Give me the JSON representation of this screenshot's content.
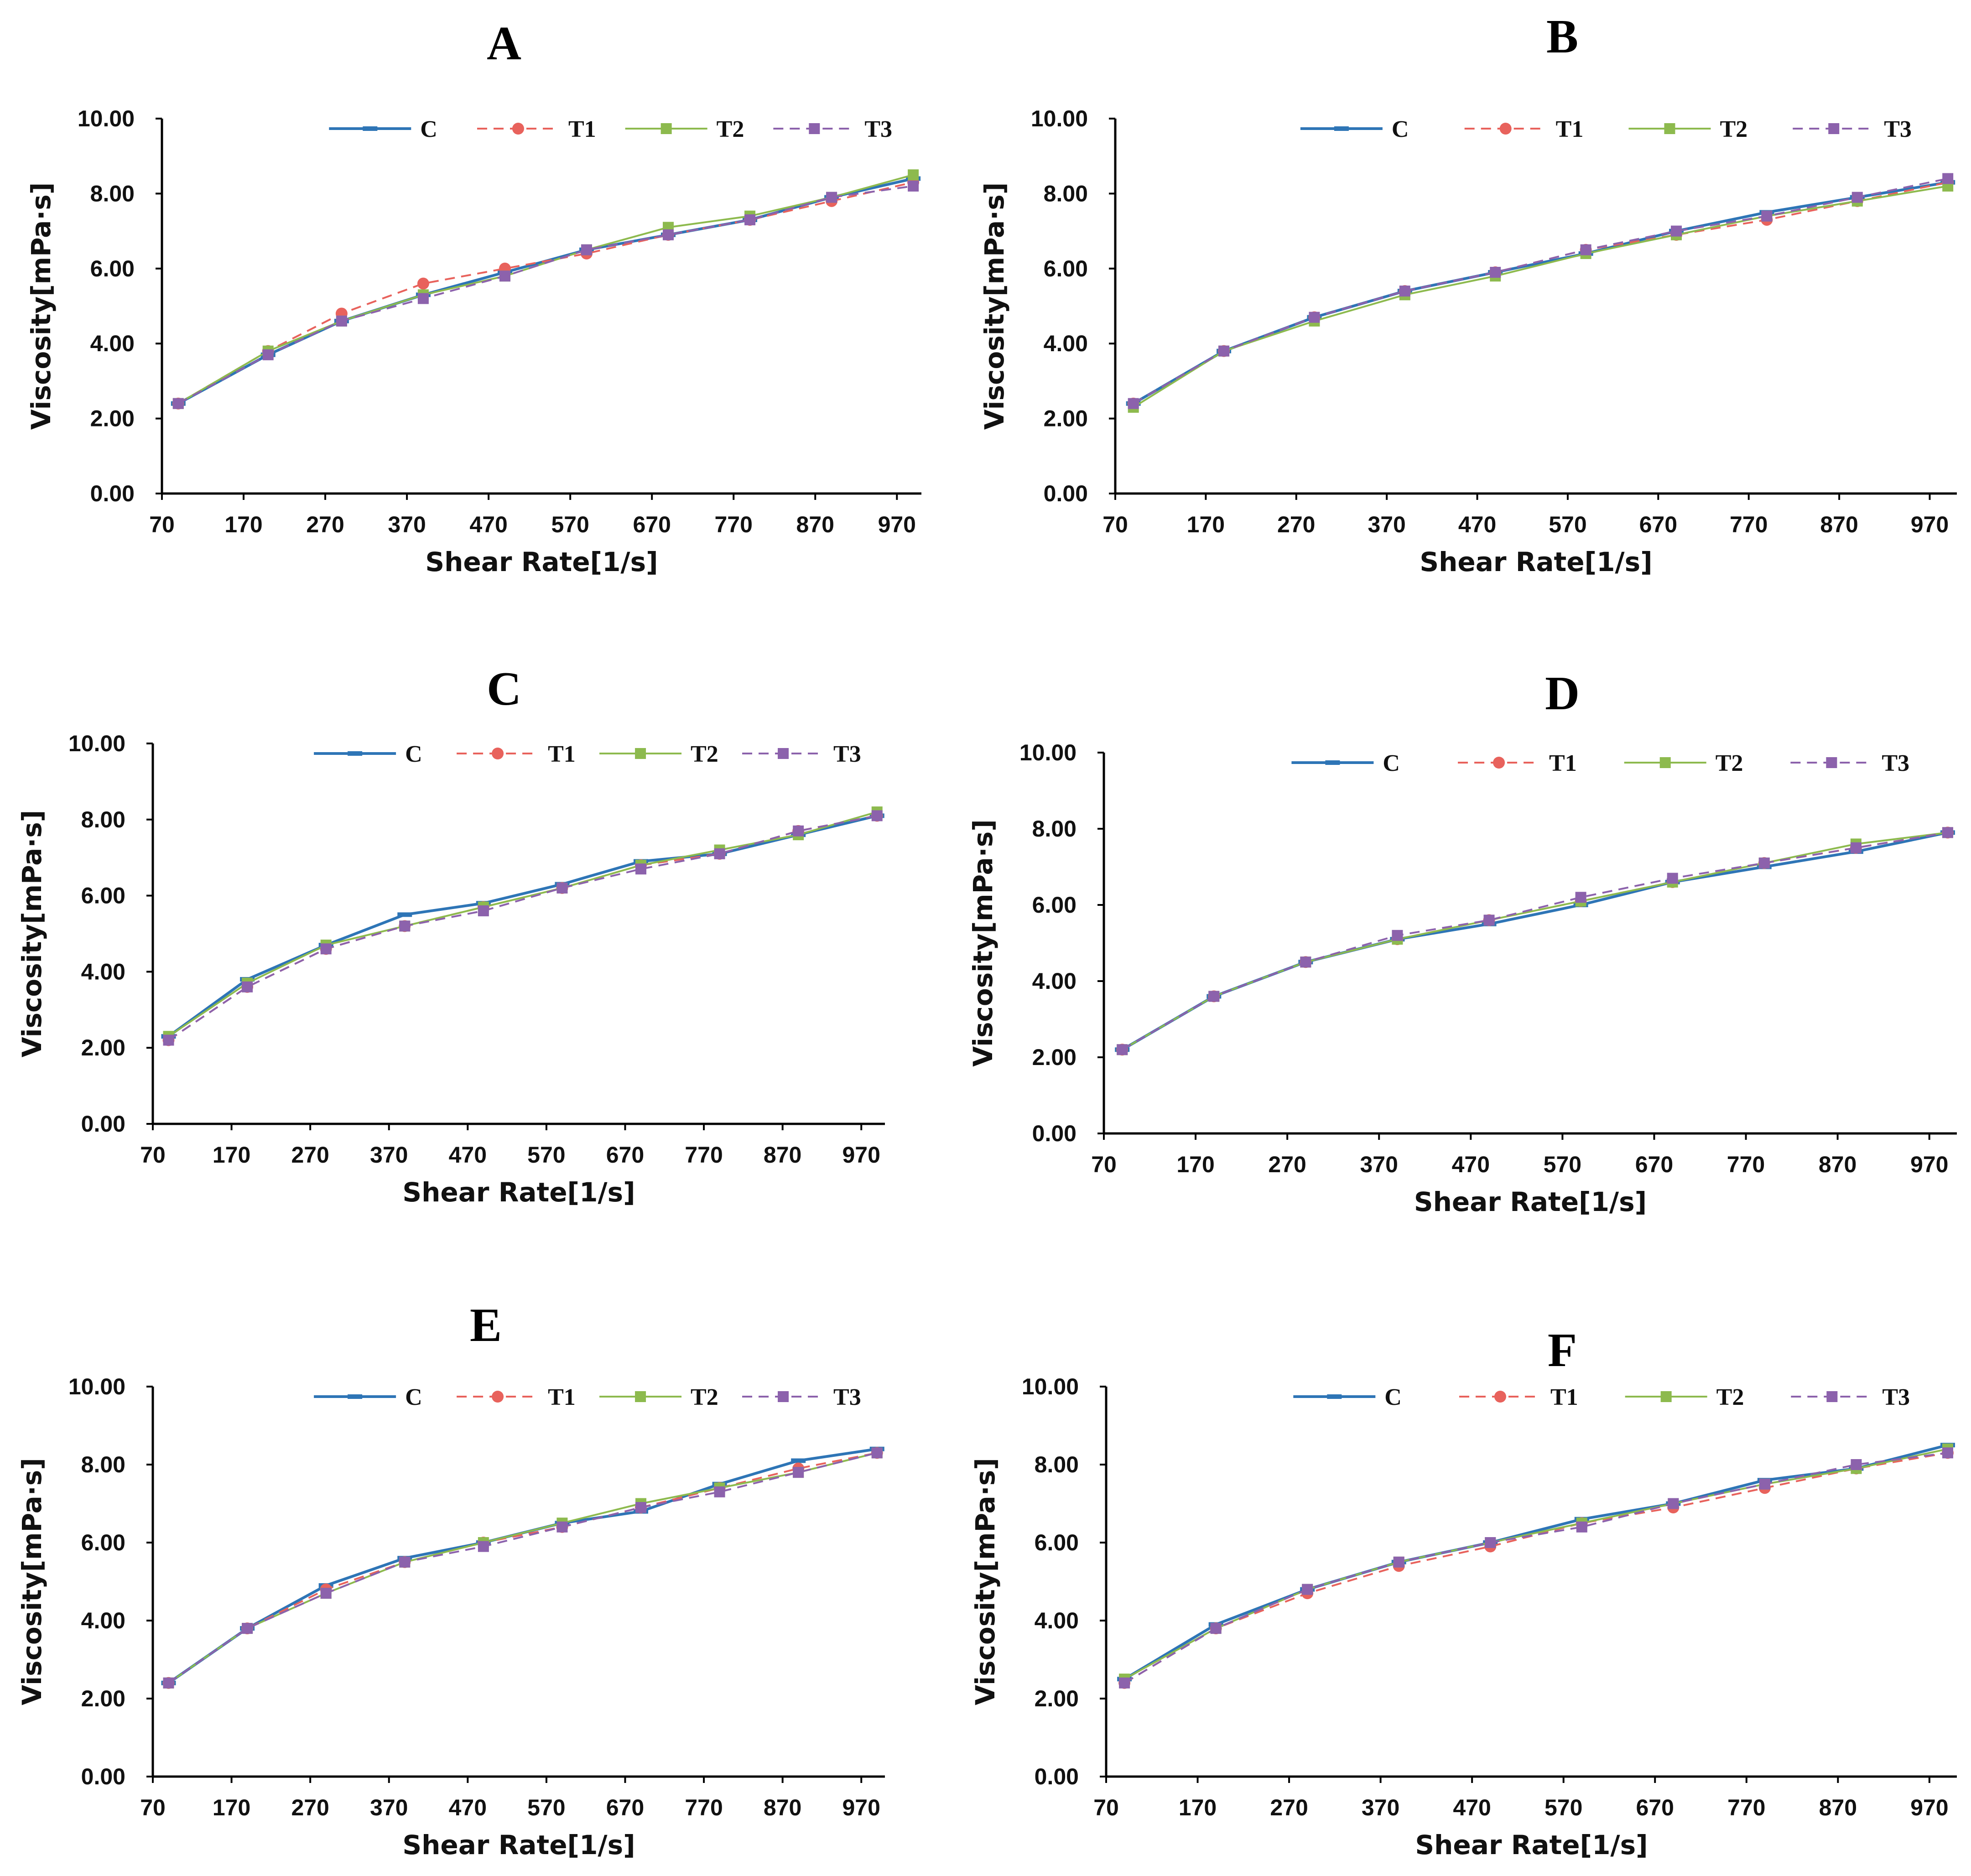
{
  "colors": {
    "C": "#2E75B6",
    "T1": "#E8625C",
    "T2": "#8DBA4E",
    "T3": "#8C62AC",
    "axis": "#000000"
  },
  "chart_data": [
    {
      "type": "line",
      "title": "A",
      "xlabel": "Shear Rate[1/s]",
      "ylabel": "Viscosity[mPa·s]",
      "xlim": [
        70,
        1000
      ],
      "ylim": [
        0,
        10
      ],
      "x_ticks": [
        "70",
        "170",
        "270",
        "370",
        "470",
        "570",
        "670",
        "770",
        "870",
        "970"
      ],
      "y_ticks": [
        "0.00",
        "2.00",
        "4.00",
        "6.00",
        "8.00",
        "10.00"
      ],
      "legend": "top",
      "series": [
        {
          "name": "C",
          "x": [
            90,
            200,
            290,
            390,
            490,
            590,
            690,
            790,
            890,
            990
          ],
          "values": [
            2.4,
            3.7,
            4.6,
            5.3,
            5.9,
            6.5,
            6.9,
            7.3,
            7.9,
            8.4
          ]
        },
        {
          "name": "T1",
          "x": [
            90,
            200,
            290,
            390,
            490,
            590,
            690,
            790,
            890,
            990
          ],
          "values": [
            2.4,
            3.8,
            4.8,
            5.6,
            6.0,
            6.4,
            6.9,
            7.3,
            7.8,
            8.3
          ]
        },
        {
          "name": "T2",
          "x": [
            90,
            200,
            290,
            390,
            490,
            590,
            690,
            790,
            890,
            990
          ],
          "values": [
            2.4,
            3.8,
            4.6,
            5.3,
            5.8,
            6.5,
            7.1,
            7.4,
            7.9,
            8.5
          ]
        },
        {
          "name": "T3",
          "x": [
            90,
            200,
            290,
            390,
            490,
            590,
            690,
            790,
            890,
            990
          ],
          "values": [
            2.4,
            3.7,
            4.6,
            5.2,
            5.8,
            6.5,
            6.9,
            7.3,
            7.9,
            8.2
          ]
        }
      ]
    },
    {
      "type": "line",
      "title": "B",
      "xlabel": "Shear Rate[1/s]",
      "ylabel": "Viscosity[mPa·s]",
      "xlim": [
        70,
        1000
      ],
      "ylim": [
        0,
        10
      ],
      "x_ticks": [
        "70",
        "170",
        "270",
        "370",
        "470",
        "570",
        "670",
        "770",
        "870",
        "970"
      ],
      "y_ticks": [
        "0.00",
        "2.00",
        "4.00",
        "6.00",
        "8.00",
        "10.00"
      ],
      "legend": "top",
      "series": [
        {
          "name": "C",
          "x": [
            90,
            190,
            290,
            390,
            490,
            590,
            690,
            790,
            890,
            990
          ],
          "values": [
            2.4,
            3.8,
            4.7,
            5.4,
            5.9,
            6.4,
            7.0,
            7.5,
            7.9,
            8.3
          ]
        },
        {
          "name": "T1",
          "x": [
            90,
            190,
            290,
            390,
            490,
            590,
            690,
            790,
            890,
            990
          ],
          "values": [
            2.4,
            3.8,
            4.7,
            5.4,
            5.9,
            6.5,
            6.9,
            7.3,
            7.8,
            8.3
          ]
        },
        {
          "name": "T2",
          "x": [
            90,
            190,
            290,
            390,
            490,
            590,
            690,
            790,
            890,
            990
          ],
          "values": [
            2.3,
            3.8,
            4.6,
            5.3,
            5.8,
            6.4,
            6.9,
            7.4,
            7.8,
            8.2
          ]
        },
        {
          "name": "T3",
          "x": [
            90,
            190,
            290,
            390,
            490,
            590,
            690,
            790,
            890,
            990
          ],
          "values": [
            2.4,
            3.8,
            4.7,
            5.4,
            5.9,
            6.5,
            7.0,
            7.4,
            7.9,
            8.4
          ]
        }
      ]
    },
    {
      "type": "line",
      "title": "C",
      "xlabel": "Shear Rate[1/s]",
      "ylabel": "Viscosity[mPa·s]",
      "xlim": [
        70,
        1000
      ],
      "ylim": [
        0,
        10
      ],
      "x_ticks": [
        "70",
        "170",
        "270",
        "370",
        "470",
        "570",
        "670",
        "770",
        "870",
        "970"
      ],
      "y_ticks": [
        "0.00",
        "2.00",
        "4.00",
        "6.00",
        "8.00",
        "10.00"
      ],
      "legend": "top",
      "series": [
        {
          "name": "C",
          "x": [
            90,
            190,
            290,
            390,
            490,
            590,
            690,
            790,
            890,
            990
          ],
          "values": [
            2.3,
            3.8,
            4.7,
            5.5,
            5.8,
            6.3,
            6.9,
            7.1,
            7.6,
            8.1
          ]
        },
        {
          "name": "T1",
          "x": [
            90,
            190,
            290,
            390,
            490,
            590,
            690,
            790,
            890,
            990
          ],
          "values": [
            2.2,
            3.6,
            4.6,
            5.2,
            5.7,
            6.2,
            6.8,
            7.1,
            7.7,
            8.1
          ]
        },
        {
          "name": "T2",
          "x": [
            90,
            190,
            290,
            390,
            490,
            590,
            690,
            790,
            890,
            990
          ],
          "values": [
            2.3,
            3.7,
            4.7,
            5.2,
            5.7,
            6.2,
            6.8,
            7.2,
            7.6,
            8.2
          ]
        },
        {
          "name": "T3",
          "x": [
            90,
            190,
            290,
            390,
            490,
            590,
            690,
            790,
            890,
            990
          ],
          "values": [
            2.2,
            3.6,
            4.6,
            5.2,
            5.6,
            6.2,
            6.7,
            7.1,
            7.7,
            8.1
          ]
        }
      ]
    },
    {
      "type": "line",
      "title": "D",
      "xlabel": "Shear Rate[1/s]",
      "ylabel": "Viscosity[mPa·s]",
      "xlim": [
        70,
        1000
      ],
      "ylim": [
        0,
        10
      ],
      "x_ticks": [
        "70",
        "170",
        "270",
        "370",
        "470",
        "570",
        "670",
        "770",
        "870",
        "970"
      ],
      "y_ticks": [
        "0.00",
        "2.00",
        "4.00",
        "6.00",
        "8.00",
        "10.00"
      ],
      "legend": "top",
      "series": [
        {
          "name": "C",
          "x": [
            90,
            190,
            290,
            390,
            490,
            590,
            690,
            790,
            890,
            990
          ],
          "values": [
            2.2,
            3.6,
            4.5,
            5.1,
            5.5,
            6.0,
            6.6,
            7.0,
            7.4,
            7.9
          ]
        },
        {
          "name": "T1",
          "x": [
            90,
            190,
            290,
            390,
            490,
            590,
            690,
            790,
            890,
            990
          ],
          "values": [
            2.2,
            3.6,
            4.5,
            5.1,
            5.6,
            6.1,
            6.6,
            7.1,
            7.5,
            7.9
          ]
        },
        {
          "name": "T2",
          "x": [
            90,
            190,
            290,
            390,
            490,
            590,
            690,
            790,
            890,
            990
          ],
          "values": [
            2.2,
            3.6,
            4.5,
            5.1,
            5.6,
            6.1,
            6.6,
            7.1,
            7.6,
            7.9
          ]
        },
        {
          "name": "T3",
          "x": [
            90,
            190,
            290,
            390,
            490,
            590,
            690,
            790,
            890,
            990
          ],
          "values": [
            2.2,
            3.6,
            4.5,
            5.2,
            5.6,
            6.2,
            6.7,
            7.1,
            7.5,
            7.9
          ]
        }
      ]
    },
    {
      "type": "line",
      "title": "E",
      "xlabel": "Shear Rate[1/s]",
      "ylabel": "Viscosity[mPa·s]",
      "xlim": [
        70,
        1000
      ],
      "ylim": [
        0,
        10
      ],
      "x_ticks": [
        "70",
        "170",
        "270",
        "370",
        "470",
        "570",
        "670",
        "770",
        "870",
        "970"
      ],
      "y_ticks": [
        "0.00",
        "2.00",
        "4.00",
        "6.00",
        "8.00",
        "10.00"
      ],
      "legend": "top",
      "series": [
        {
          "name": "C",
          "x": [
            90,
            190,
            290,
            390,
            490,
            590,
            690,
            790,
            890,
            990
          ],
          "values": [
            2.4,
            3.8,
            4.9,
            5.6,
            6.0,
            6.5,
            6.8,
            7.5,
            8.1,
            8.4
          ]
        },
        {
          "name": "T1",
          "x": [
            90,
            190,
            290,
            390,
            490,
            590,
            690,
            790,
            890,
            990
          ],
          "values": [
            2.4,
            3.8,
            4.8,
            5.5,
            6.0,
            6.4,
            6.9,
            7.4,
            7.9,
            8.3
          ]
        },
        {
          "name": "T2",
          "x": [
            90,
            190,
            290,
            390,
            490,
            590,
            690,
            790,
            890,
            990
          ],
          "values": [
            2.4,
            3.8,
            4.7,
            5.5,
            6.0,
            6.5,
            7.0,
            7.4,
            7.8,
            8.3
          ]
        },
        {
          "name": "T3",
          "x": [
            90,
            190,
            290,
            390,
            490,
            590,
            690,
            790,
            890,
            990
          ],
          "values": [
            2.4,
            3.8,
            4.7,
            5.5,
            5.9,
            6.4,
            6.9,
            7.3,
            7.8,
            8.3
          ]
        }
      ]
    },
    {
      "type": "line",
      "title": "F",
      "xlabel": "Shear Rate[1/s]",
      "ylabel": "Viscosity[mPa·s]",
      "xlim": [
        70,
        1000
      ],
      "ylim": [
        0,
        10
      ],
      "x_ticks": [
        "70",
        "170",
        "270",
        "370",
        "470",
        "570",
        "670",
        "770",
        "870",
        "970"
      ],
      "y_ticks": [
        "0.00",
        "2.00",
        "4.00",
        "6.00",
        "8.00",
        "10.00"
      ],
      "legend": "top",
      "series": [
        {
          "name": "C",
          "x": [
            90,
            190,
            290,
            390,
            490,
            590,
            690,
            790,
            890,
            990
          ],
          "values": [
            2.5,
            3.9,
            4.8,
            5.5,
            6.0,
            6.6,
            7.0,
            7.6,
            7.9,
            8.5
          ]
        },
        {
          "name": "T1",
          "x": [
            90,
            190,
            290,
            390,
            490,
            590,
            690,
            790,
            890,
            990
          ],
          "values": [
            2.4,
            3.8,
            4.7,
            5.4,
            5.9,
            6.5,
            6.9,
            7.4,
            7.9,
            8.3
          ]
        },
        {
          "name": "T2",
          "x": [
            90,
            190,
            290,
            390,
            490,
            590,
            690,
            790,
            890,
            990
          ],
          "values": [
            2.5,
            3.8,
            4.8,
            5.5,
            6.0,
            6.5,
            7.0,
            7.5,
            7.9,
            8.4
          ]
        },
        {
          "name": "T3",
          "x": [
            90,
            190,
            290,
            390,
            490,
            590,
            690,
            790,
            890,
            990
          ],
          "values": [
            2.4,
            3.8,
            4.8,
            5.5,
            6.0,
            6.4,
            7.0,
            7.5,
            8.0,
            8.3
          ]
        }
      ]
    }
  ]
}
